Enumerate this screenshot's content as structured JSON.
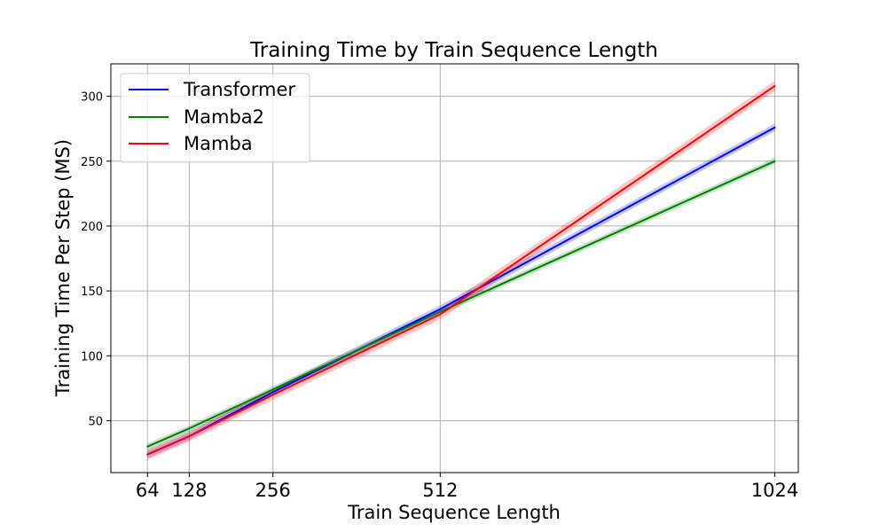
{
  "chart_data": {
    "type": "line",
    "title": "Training Time by Train Sequence Length",
    "xlabel": "Train Sequence Length",
    "ylabel": "Training Time Per Step (MS)",
    "x": [
      64,
      128,
      256,
      512,
      1024
    ],
    "xticks": [
      "64",
      "128",
      "256",
      "512",
      "1024"
    ],
    "yticks": [
      50,
      100,
      150,
      200,
      250,
      300
    ],
    "xlim": [
      8,
      1060
    ],
    "ylim": [
      10,
      325
    ],
    "grid": true,
    "legend_position": "top-left",
    "series": [
      {
        "name": "Transformer",
        "color": "#0000ff",
        "values": [
          24,
          38,
          72,
          136,
          276
        ],
        "band": 3
      },
      {
        "name": "Mamba2",
        "color": "#008000",
        "values": [
          30,
          44,
          74,
          134,
          250
        ],
        "band": 2.5
      },
      {
        "name": "Mamba",
        "color": "#ff0000",
        "values": [
          24,
          38,
          70,
          132,
          308
        ],
        "band": 4
      }
    ]
  }
}
